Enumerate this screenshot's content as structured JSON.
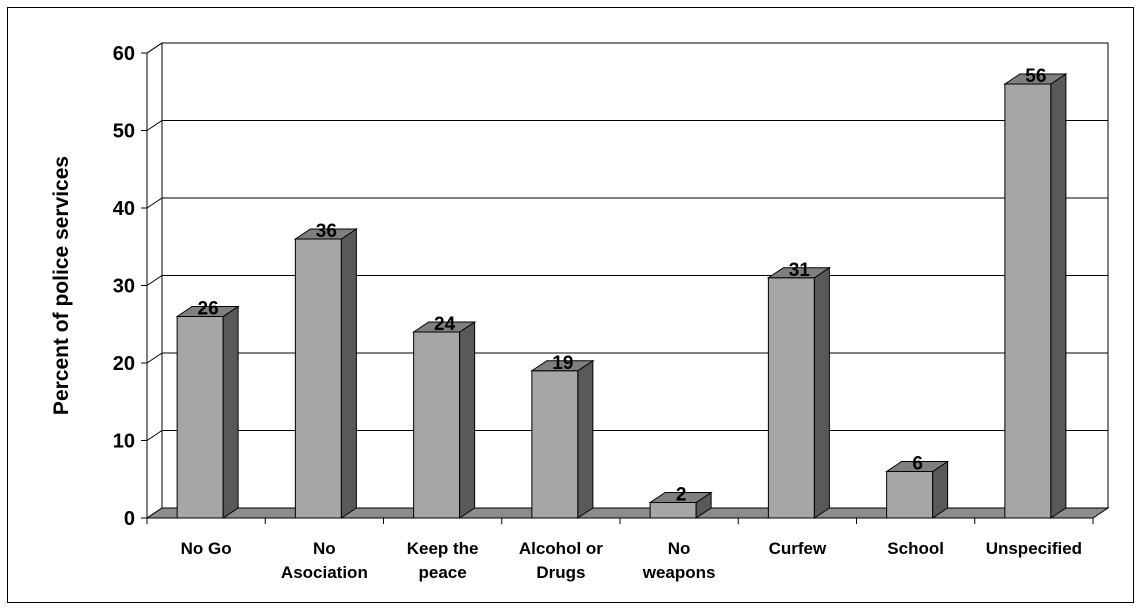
{
  "chart_data": {
    "type": "bar",
    "title": "",
    "xlabel": "",
    "ylabel": "Percent of police services",
    "ylim": [
      0,
      60
    ],
    "yticks": [
      0,
      10,
      20,
      30,
      40,
      50,
      60
    ],
    "grid": true,
    "legend": "none",
    "categories": [
      [
        "No Go"
      ],
      [
        "No",
        "Asociation"
      ],
      [
        "Keep the",
        "peace"
      ],
      [
        "Alcohol or",
        "Drugs"
      ],
      [
        "No",
        "weapons"
      ],
      [
        "Curfew"
      ],
      [
        "School"
      ],
      [
        "Unspecified"
      ]
    ],
    "values": [
      26,
      36,
      24,
      19,
      2,
      31,
      6,
      56
    ],
    "colors": {
      "bar_front": "#a6a6a6",
      "bar_side": "#595959",
      "bar_top": "#7f7f7f",
      "floor": "#8c8c8c"
    }
  }
}
